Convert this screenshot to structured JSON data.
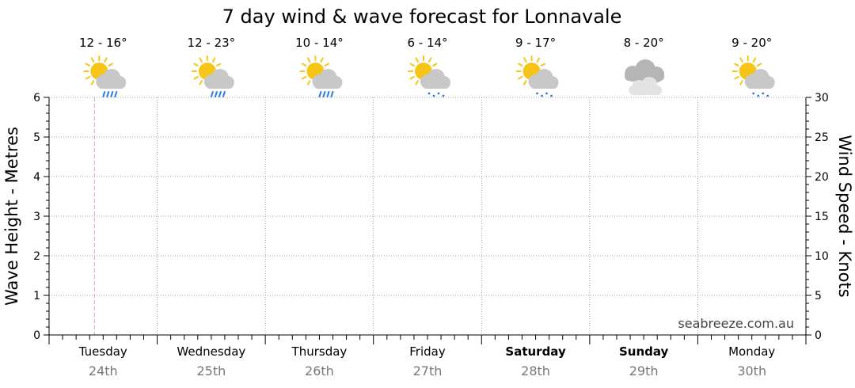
{
  "chart_data": {
    "type": "line",
    "title": "7 day wind & wave forecast for Lonnavale",
    "ylabel_left": "Wave Height - Metres",
    "ylabel_right": "Wind Speed - Knots",
    "ylim_left": [
      0,
      6
    ],
    "ylim_right": [
      0,
      30
    ],
    "yticks_left": [
      "0",
      "1",
      "2",
      "3",
      "4",
      "5",
      "6"
    ],
    "yticks_right": [
      "0",
      "5",
      "10",
      "15",
      "20",
      "25",
      "30"
    ],
    "grid": true,
    "current_time_marker_day_index": 0.42,
    "days": [
      {
        "name": "Tuesday",
        "date": "24th",
        "bold": false,
        "temp": "12 - 16°",
        "icon": "partly-sunny-showers-icon"
      },
      {
        "name": "Wednesday",
        "date": "25th",
        "bold": false,
        "temp": "12 - 23°",
        "icon": "partly-sunny-showers-icon"
      },
      {
        "name": "Thursday",
        "date": "26th",
        "bold": false,
        "temp": "10 - 14°",
        "icon": "partly-sunny-showers-icon"
      },
      {
        "name": "Friday",
        "date": "27th",
        "bold": false,
        "temp": "6 - 14°",
        "icon": "partly-sunny-drizzle-icon"
      },
      {
        "name": "Saturday",
        "date": "28th",
        "bold": true,
        "temp": "9 - 17°",
        "icon": "partly-sunny-drizzle-icon"
      },
      {
        "name": "Sunday",
        "date": "29th",
        "bold": true,
        "temp": "8 - 20°",
        "icon": "cloudy-icon"
      },
      {
        "name": "Monday",
        "date": "30th",
        "bold": false,
        "temp": "9 - 20°",
        "icon": "partly-sunny-drizzle-icon"
      }
    ],
    "series": []
  },
  "watermark": "seabreeze.com.au",
  "colors": {
    "sun": "#f5c518",
    "cloud": "#c8c8c8",
    "cloud_dark": "#b5b5b5",
    "rain": "#2a7de1",
    "grid": "#a0a0a0",
    "current_time": "#f0a0a0"
  }
}
